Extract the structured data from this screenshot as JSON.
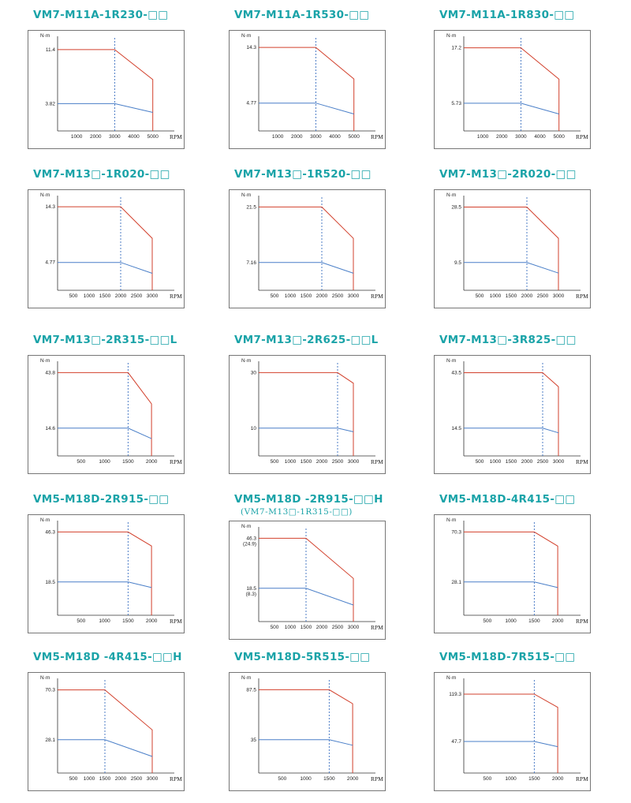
{
  "colors": {
    "title": "#1aa3a8",
    "rated_torque_curve": "#d2402c",
    "continuous_torque_curve": "#4a7fc8",
    "rated_speed_line": "#3a6fc0"
  },
  "chart_data": [
    {
      "type": "line",
      "title": "VM7-M11A-1R230-□□",
      "ylabel": "N·m",
      "xlabel": "RPM",
      "x_ticks": [
        1000,
        2000,
        3000,
        4000,
        5000
      ],
      "xlim": [
        0,
        5800
      ],
      "ylim": [
        0,
        12.6
      ],
      "y_ticks": [
        11.4,
        3.82
      ],
      "y_tick_labels": [
        "11.4",
        "3.82"
      ],
      "series": [
        {
          "x": [
            0,
            3000,
            5000,
            5000
          ],
          "y": [
            11.4,
            11.4,
            7.2,
            0
          ]
        },
        {
          "x": [
            0,
            3000,
            5000
          ],
          "y": [
            3.82,
            3.82,
            2.6
          ]
        }
      ],
      "rated_rpm": 3000
    },
    {
      "type": "line",
      "title": "VM7-M11A-1R530-□□",
      "ylabel": "N·m",
      "xlabel": "RPM",
      "x_ticks": [
        1000,
        2000,
        3000,
        4000,
        5000
      ],
      "xlim": [
        0,
        5800
      ],
      "ylim": [
        0,
        15.4
      ],
      "y_ticks": [
        14.3,
        4.77
      ],
      "y_tick_labels": [
        "14.3",
        "4.77"
      ],
      "series": [
        {
          "x": [
            0,
            3000,
            5000,
            5000
          ],
          "y": [
            14.3,
            14.3,
            8.9,
            0
          ]
        },
        {
          "x": [
            0,
            3000,
            5000
          ],
          "y": [
            4.77,
            4.77,
            2.9
          ]
        }
      ],
      "rated_rpm": 3000
    },
    {
      "type": "line",
      "title": "VM7-M11A-1R830-□□",
      "ylabel": "N·m",
      "xlabel": "RPM",
      "x_ticks": [
        1000,
        2000,
        3000,
        4000,
        5000
      ],
      "xlim": [
        0,
        5800
      ],
      "ylim": [
        0,
        18.6
      ],
      "y_ticks": [
        17.2,
        5.73
      ],
      "y_tick_labels": [
        "17.2",
        "5.73"
      ],
      "series": [
        {
          "x": [
            0,
            3000,
            5000,
            5000
          ],
          "y": [
            17.2,
            17.2,
            10.7,
            0
          ]
        },
        {
          "x": [
            0,
            3000,
            5000
          ],
          "y": [
            5.73,
            5.73,
            3.5
          ]
        }
      ],
      "rated_rpm": 3000
    },
    {
      "type": "line",
      "title": "VM7-M13□-1R020-□□",
      "ylabel": "N·m",
      "xlabel": "RPM",
      "x_ticks": [
        500,
        1000,
        1500,
        2000,
        2500,
        3000
      ],
      "xlim": [
        0,
        3500
      ],
      "ylim": [
        0,
        15.4
      ],
      "y_ticks": [
        14.3,
        4.77
      ],
      "y_tick_labels": [
        "14.3",
        "4.77"
      ],
      "series": [
        {
          "x": [
            0,
            2000,
            3000,
            3000
          ],
          "y": [
            14.3,
            14.3,
            8.9,
            0
          ]
        },
        {
          "x": [
            0,
            2000,
            3000
          ],
          "y": [
            4.77,
            4.77,
            2.9
          ]
        }
      ],
      "rated_rpm": 2000
    },
    {
      "type": "line",
      "title": "VM7-M13□-1R520-□□",
      "ylabel": "N·m",
      "xlabel": "RPM",
      "x_ticks": [
        500,
        1000,
        1500,
        2000,
        2500,
        3000
      ],
      "xlim": [
        0,
        3500
      ],
      "ylim": [
        0,
        23.2
      ],
      "y_ticks": [
        21.5,
        7.16
      ],
      "y_tick_labels": [
        "21.5",
        "7.16"
      ],
      "series": [
        {
          "x": [
            0,
            2000,
            3000,
            3000
          ],
          "y": [
            21.5,
            21.5,
            13.4,
            0
          ]
        },
        {
          "x": [
            0,
            2000,
            3000
          ],
          "y": [
            7.16,
            7.16,
            4.4
          ]
        }
      ],
      "rated_rpm": 2000
    },
    {
      "type": "line",
      "title": "VM7-M13□-2R020-□□",
      "ylabel": "N·m",
      "xlabel": "RPM",
      "x_ticks": [
        500,
        1000,
        1500,
        2000,
        2500,
        3000
      ],
      "xlim": [
        0,
        3500
      ],
      "ylim": [
        0,
        30.8
      ],
      "y_ticks": [
        28.5,
        9.5
      ],
      "y_tick_labels": [
        "28.5",
        "9.5"
      ],
      "series": [
        {
          "x": [
            0,
            2000,
            3000,
            3000
          ],
          "y": [
            28.5,
            28.5,
            17.8,
            0
          ]
        },
        {
          "x": [
            0,
            2000,
            3000
          ],
          "y": [
            9.5,
            9.5,
            5.9
          ]
        }
      ],
      "rated_rpm": 2000
    },
    {
      "type": "line",
      "title": "VM7-M13□-2R315-□□L",
      "ylabel": "N·m",
      "xlabel": "RPM",
      "x_ticks": [
        500,
        1000,
        1500,
        2000
      ],
      "xlim": [
        0,
        2350
      ],
      "ylim": [
        0,
        47.3
      ],
      "y_ticks": [
        43.8,
        14.6
      ],
      "y_tick_labels": [
        "43.8",
        "14.6"
      ],
      "series": [
        {
          "x": [
            0,
            1500,
            2000,
            2000
          ],
          "y": [
            43.8,
            43.8,
            27.4,
            0
          ]
        },
        {
          "x": [
            0,
            1500,
            2000
          ],
          "y": [
            14.6,
            14.6,
            9.1
          ]
        }
      ],
      "rated_rpm": 1500
    },
    {
      "type": "line",
      "title": "VM7-M13□-2R625-□□L",
      "ylabel": "N·m",
      "xlabel": "RPM",
      "x_ticks": [
        500,
        1000,
        1500,
        2000,
        2500,
        3000
      ],
      "xlim": [
        0,
        3500
      ],
      "ylim": [
        0,
        32.4
      ],
      "y_ticks": [
        30,
        10
      ],
      "y_tick_labels": [
        "30",
        "10"
      ],
      "series": [
        {
          "x": [
            0,
            2500,
            3000,
            3000
          ],
          "y": [
            30,
            30,
            26.2,
            0
          ]
        },
        {
          "x": [
            0,
            2500,
            3000
          ],
          "y": [
            10,
            10,
            8.7
          ]
        }
      ],
      "rated_rpm": 2500
    },
    {
      "type": "line",
      "title": "VM7-M13□-3R825-□□",
      "ylabel": "N·m",
      "xlabel": "RPM",
      "x_ticks": [
        500,
        1000,
        1500,
        2000,
        2500,
        3000
      ],
      "xlim": [
        0,
        3500
      ],
      "ylim": [
        0,
        47.0
      ],
      "y_ticks": [
        43.5,
        14.5
      ],
      "y_tick_labels": [
        "43.5",
        "14.5"
      ],
      "series": [
        {
          "x": [
            0,
            2500,
            3000,
            3000
          ],
          "y": [
            43.5,
            43.5,
            36.2,
            0
          ]
        },
        {
          "x": [
            0,
            2500,
            3000
          ],
          "y": [
            14.5,
            14.5,
            12.1
          ]
        }
      ],
      "rated_rpm": 2500
    },
    {
      "type": "line",
      "title": "VM5-M18D-2R915-□□",
      "ylabel": "N·m",
      "xlabel": "RPM",
      "x_ticks": [
        500,
        1000,
        1500,
        2000
      ],
      "xlim": [
        0,
        2350
      ],
      "ylim": [
        0,
        50.0
      ],
      "y_ticks": [
        46.3,
        18.5
      ],
      "y_tick_labels": [
        "46.3",
        "18.5"
      ],
      "series": [
        {
          "x": [
            0,
            1500,
            2000,
            2000
          ],
          "y": [
            46.3,
            46.3,
            38.5,
            0
          ]
        },
        {
          "x": [
            0,
            1500,
            2000
          ],
          "y": [
            18.5,
            18.5,
            15.4
          ]
        }
      ],
      "rated_rpm": 1500
    },
    {
      "type": "line",
      "title": "VM5-M18D -2R915-□□H",
      "subtitle": "(VM7-M13□-1R315-□□)",
      "ylabel": "N·m",
      "xlabel": "RPM",
      "x_ticks": [
        500,
        1000,
        1500,
        2000,
        2500,
        3000
      ],
      "xlim": [
        0,
        3500
      ],
      "ylim": [
        0,
        50.0
      ],
      "y_ticks": [
        46.3,
        18.5
      ],
      "y_tick_labels": [
        "46.3\n(24.9)",
        "18.5\n(8.3)"
      ],
      "series": [
        {
          "x": [
            0,
            1500,
            3000,
            3000
          ],
          "y": [
            46.3,
            46.3,
            24.0,
            0
          ]
        },
        {
          "x": [
            0,
            1500,
            3000
          ],
          "y": [
            18.5,
            18.5,
            9.2
          ]
        }
      ],
      "rated_rpm": 1500
    },
    {
      "type": "line",
      "title": "VM5-M18D-4R415-□□",
      "ylabel": "N·m",
      "xlabel": "RPM",
      "x_ticks": [
        500,
        1000,
        1500,
        2000
      ],
      "xlim": [
        0,
        2350
      ],
      "ylim": [
        0,
        75.9
      ],
      "y_ticks": [
        70.3,
        28.1
      ],
      "y_tick_labels": [
        "70.3",
        "28.1"
      ],
      "series": [
        {
          "x": [
            0,
            1500,
            2000,
            2000
          ],
          "y": [
            70.3,
            70.3,
            58.4,
            0
          ]
        },
        {
          "x": [
            0,
            1500,
            2000
          ],
          "y": [
            28.1,
            28.1,
            23.4
          ]
        }
      ],
      "rated_rpm": 1500
    },
    {
      "type": "line",
      "title": "VM5-M18D -4R415-□□H",
      "ylabel": "N·m",
      "xlabel": "RPM",
      "x_ticks": [
        500,
        1000,
        1500,
        2000,
        2500,
        3000
      ],
      "xlim": [
        0,
        3500
      ],
      "ylim": [
        0,
        76.0
      ],
      "y_ticks": [
        70.3,
        28.1
      ],
      "y_tick_labels": [
        "70.3",
        "28.1"
      ],
      "series": [
        {
          "x": [
            0,
            1500,
            3000,
            3000
          ],
          "y": [
            70.3,
            70.3,
            36.5,
            0
          ]
        },
        {
          "x": [
            0,
            1500,
            3000
          ],
          "y": [
            28.1,
            28.1,
            14.0
          ]
        }
      ],
      "rated_rpm": 1500
    },
    {
      "type": "line",
      "title": "VM5-M18D-5R515-□□",
      "ylabel": "N·m",
      "xlabel": "RPM",
      "x_ticks": [
        500,
        1000,
        1500,
        2000
      ],
      "xlim": [
        0,
        2350
      ],
      "ylim": [
        0,
        94.5
      ],
      "y_ticks": [
        87.5,
        35
      ],
      "y_tick_labels": [
        "87.5",
        "35"
      ],
      "series": [
        {
          "x": [
            0,
            1500,
            2000,
            2000
          ],
          "y": [
            87.5,
            87.5,
            72.9,
            0
          ]
        },
        {
          "x": [
            0,
            1500,
            2000
          ],
          "y": [
            35,
            35,
            29.2
          ]
        }
      ],
      "rated_rpm": 1500
    },
    {
      "type": "line",
      "title": "VM5-M18D-7R515-□□",
      "ylabel": "N·m",
      "xlabel": "RPM",
      "x_ticks": [
        500,
        1000,
        1500,
        2000
      ],
      "xlim": [
        0,
        2350
      ],
      "ylim": [
        0,
        136
      ],
      "y_ticks": [
        119.3,
        47.7
      ],
      "y_tick_labels": [
        "119.3",
        "47.7"
      ],
      "series": [
        {
          "x": [
            0,
            1500,
            2000,
            2000
          ],
          "y": [
            119.3,
            119.3,
            99.4,
            0
          ]
        },
        {
          "x": [
            0,
            1500,
            2000
          ],
          "y": [
            47.7,
            47.7,
            39.8
          ]
        }
      ],
      "rated_rpm": 1500
    }
  ]
}
